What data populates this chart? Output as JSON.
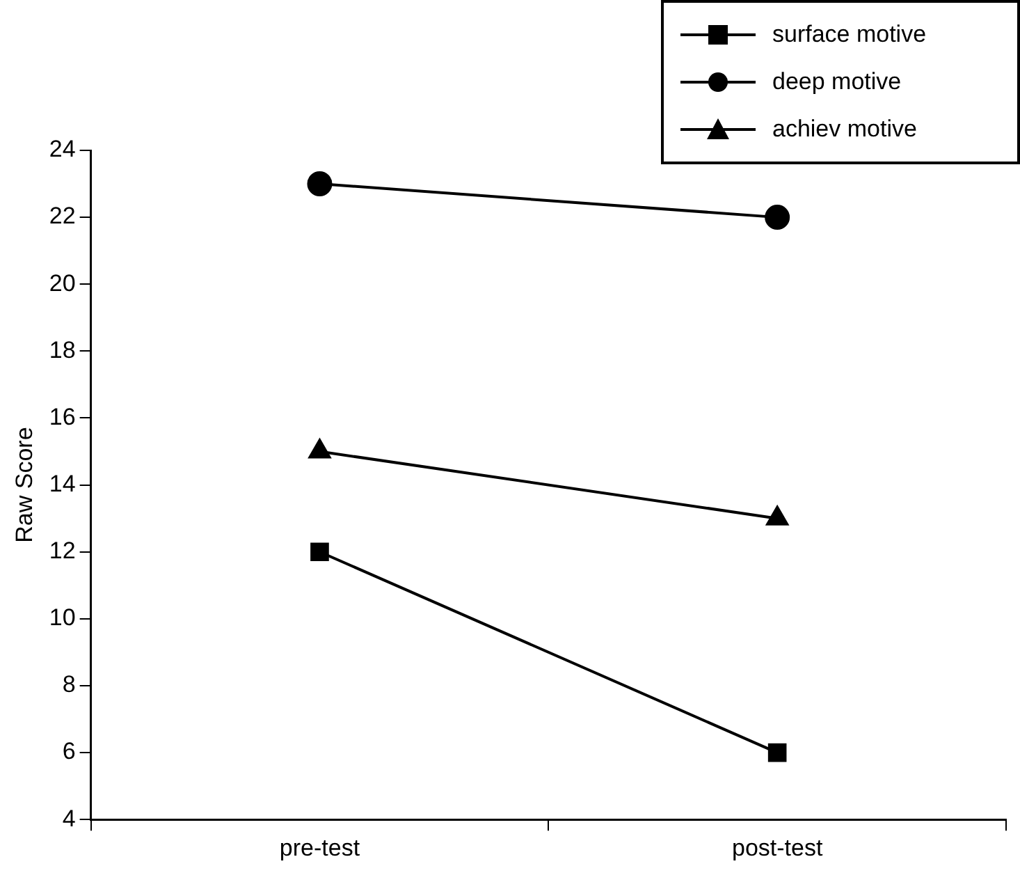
{
  "chart_data": {
    "type": "line",
    "categories": [
      "pre-test",
      "post-test"
    ],
    "ylabel": "Raw Score",
    "ylim": [
      4,
      24
    ],
    "yticks": [
      4,
      6,
      8,
      10,
      12,
      14,
      16,
      18,
      20,
      22,
      24
    ],
    "grid": false,
    "legend": "top right",
    "line_style": "solid",
    "series": [
      {
        "name": "surface motive",
        "color": "#000000",
        "marker": "square",
        "values": [
          12,
          6
        ]
      },
      {
        "name": "deep motive",
        "color": "#000000",
        "marker": "circle",
        "values": [
          23,
          22
        ]
      },
      {
        "name": "achiev motive",
        "color": "#000000",
        "marker": "triangle",
        "values": [
          15,
          13
        ]
      }
    ]
  }
}
